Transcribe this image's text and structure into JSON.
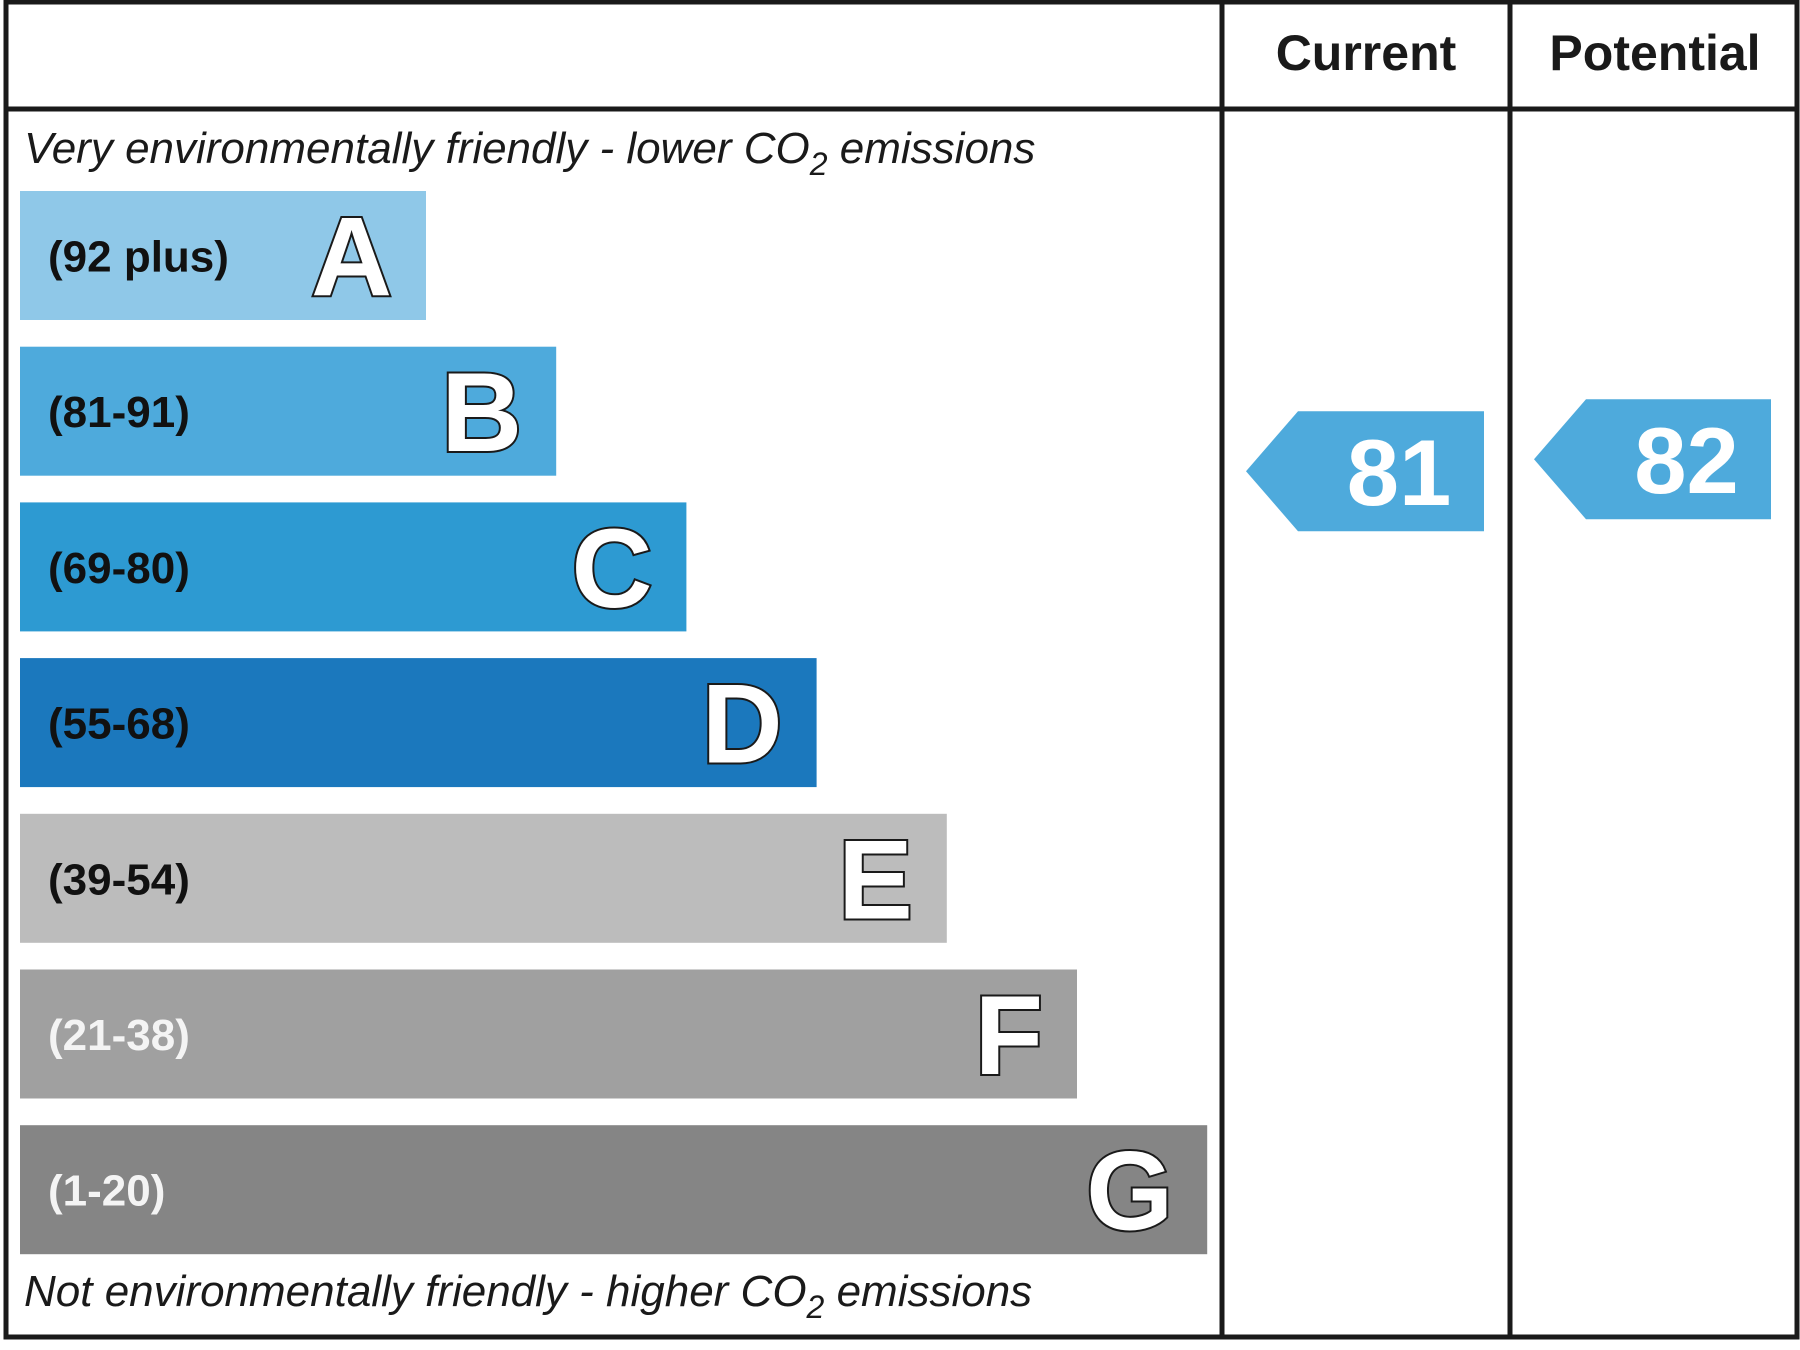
{
  "chart_data": {
    "type": "bar",
    "columns": {
      "current": "Current",
      "potential": "Potential"
    },
    "top_note": {
      "prefix": "Very environmentally friendly - lower CO",
      "sub": "2",
      "suffix": " emissions"
    },
    "bottom_note": {
      "prefix": "Not environmentally friendly - higher CO",
      "sub": "2",
      "suffix": " emissions"
    },
    "bands": [
      {
        "letter": "A",
        "range": "(92 plus)",
        "color": "#8fc8e8",
        "text_color": "#111111"
      },
      {
        "letter": "B",
        "range": "(81-91)",
        "color": "#4eaadc",
        "text_color": "#111111"
      },
      {
        "letter": "C",
        "range": "(69-80)",
        "color": "#2d9ad2",
        "text_color": "#111111"
      },
      {
        "letter": "D",
        "range": "(55-68)",
        "color": "#1b78bd",
        "text_color": "#111111"
      },
      {
        "letter": "E",
        "range": "(39-54)",
        "color": "#bcbcbc",
        "text_color": "#111111"
      },
      {
        "letter": "F",
        "range": "(21-38)",
        "color": "#a0a0a0",
        "text_color": "#f4f4f4"
      },
      {
        "letter": "G",
        "range": "(1-20)",
        "color": "#858585",
        "text_color": "#f4f4f4"
      }
    ],
    "current": {
      "value": 81,
      "band": "B",
      "color": "#4eaadc"
    },
    "potential": {
      "value": 82,
      "band": "B",
      "color": "#4eaadc"
    }
  }
}
